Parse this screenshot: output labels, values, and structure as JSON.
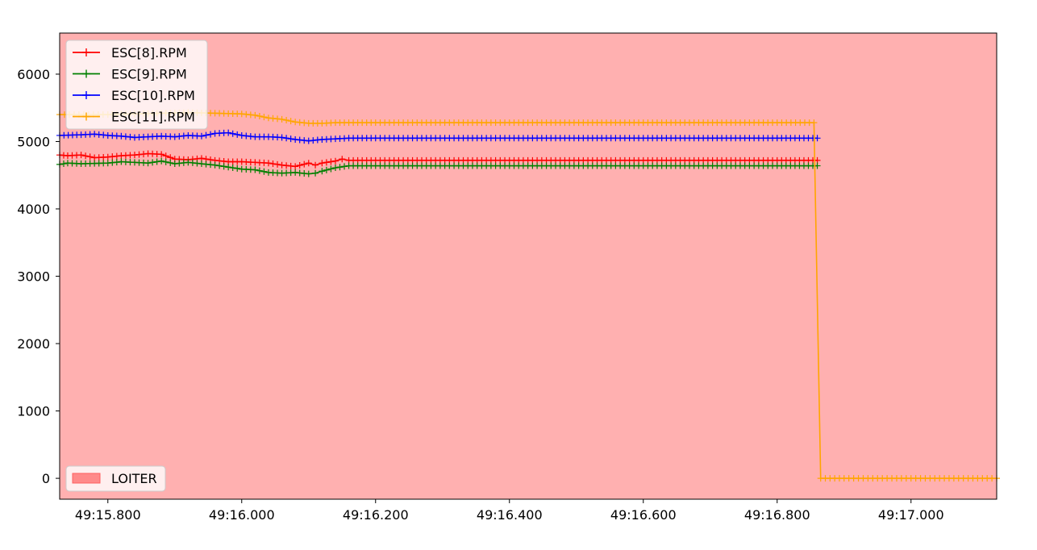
{
  "chart_data": {
    "type": "line",
    "x_unit": "seconds past 49:15",
    "xlim": [
      15.728,
      17.128
    ],
    "ylim": [
      -310,
      6610
    ],
    "x_ticks": [
      {
        "value": 15.8,
        "label": "49:15.800"
      },
      {
        "value": 16.0,
        "label": "49:16.000"
      },
      {
        "value": 16.2,
        "label": "49:16.200"
      },
      {
        "value": 16.4,
        "label": "49:16.400"
      },
      {
        "value": 16.6,
        "label": "49:16.600"
      },
      {
        "value": 16.8,
        "label": "49:16.800"
      },
      {
        "value": 17.0,
        "label": "49:17.000"
      }
    ],
    "y_ticks": [
      {
        "value": 0,
        "label": "0"
      },
      {
        "value": 1000,
        "label": "1000"
      },
      {
        "value": 2000,
        "label": "2000"
      },
      {
        "value": 3000,
        "label": "3000"
      },
      {
        "value": 4000,
        "label": "4000"
      },
      {
        "value": 5000,
        "label": "5000"
      },
      {
        "value": 6000,
        "label": "6000"
      }
    ],
    "background_mode": {
      "name": "LOITER",
      "color": "#ffb0b0",
      "legend_swatch": "#ff8a8a",
      "x_start": 15.728,
      "x_end": 17.128
    },
    "legend_placement": "upper-left",
    "mode_legend_placement": "lower-left",
    "grid": false,
    "marker": "plus",
    "series": [
      {
        "name": "ESC[8].RPM",
        "color": "#ff0000",
        "points": [
          [
            15.728,
            4800
          ],
          [
            15.74,
            4790
          ],
          [
            15.76,
            4800
          ],
          [
            15.78,
            4760
          ],
          [
            15.8,
            4770
          ],
          [
            15.82,
            4790
          ],
          [
            15.84,
            4800
          ],
          [
            15.86,
            4820
          ],
          [
            15.88,
            4810
          ],
          [
            15.9,
            4740
          ],
          [
            15.92,
            4730
          ],
          [
            15.94,
            4750
          ],
          [
            15.96,
            4720
          ],
          [
            15.98,
            4700
          ],
          [
            16.0,
            4700
          ],
          [
            16.02,
            4690
          ],
          [
            16.04,
            4680
          ],
          [
            16.06,
            4650
          ],
          [
            16.08,
            4630
          ],
          [
            16.1,
            4680
          ],
          [
            16.11,
            4650
          ],
          [
            16.12,
            4680
          ],
          [
            16.14,
            4710
          ],
          [
            16.15,
            4740
          ],
          [
            16.16,
            4720
          ],
          [
            16.2,
            4720
          ],
          [
            16.4,
            4720
          ],
          [
            16.6,
            4720
          ],
          [
            16.8,
            4720
          ],
          [
            16.86,
            4720
          ]
        ]
      },
      {
        "name": "ESC[9].RPM",
        "color": "#008000",
        "points": [
          [
            15.728,
            4660
          ],
          [
            15.74,
            4680
          ],
          [
            15.76,
            4670
          ],
          [
            15.8,
            4680
          ],
          [
            15.82,
            4700
          ],
          [
            15.84,
            4690
          ],
          [
            15.86,
            4680
          ],
          [
            15.88,
            4710
          ],
          [
            15.9,
            4670
          ],
          [
            15.92,
            4690
          ],
          [
            15.94,
            4670
          ],
          [
            15.96,
            4650
          ],
          [
            15.98,
            4620
          ],
          [
            16.0,
            4590
          ],
          [
            16.02,
            4580
          ],
          [
            16.04,
            4540
          ],
          [
            16.06,
            4530
          ],
          [
            16.08,
            4540
          ],
          [
            16.1,
            4520
          ],
          [
            16.11,
            4530
          ],
          [
            16.12,
            4560
          ],
          [
            16.14,
            4610
          ],
          [
            16.16,
            4640
          ],
          [
            16.2,
            4640
          ],
          [
            16.4,
            4640
          ],
          [
            16.6,
            4640
          ],
          [
            16.8,
            4640
          ],
          [
            16.86,
            4640
          ]
        ]
      },
      {
        "name": "ESC[10].RPM",
        "color": "#0000ff",
        "points": [
          [
            15.728,
            5090
          ],
          [
            15.76,
            5100
          ],
          [
            15.78,
            5110
          ],
          [
            15.8,
            5090
          ],
          [
            15.82,
            5080
          ],
          [
            15.84,
            5060
          ],
          [
            15.86,
            5070
          ],
          [
            15.88,
            5080
          ],
          [
            15.9,
            5070
          ],
          [
            15.92,
            5090
          ],
          [
            15.94,
            5080
          ],
          [
            15.96,
            5120
          ],
          [
            15.98,
            5130
          ],
          [
            16.0,
            5090
          ],
          [
            16.02,
            5070
          ],
          [
            16.04,
            5070
          ],
          [
            16.06,
            5060
          ],
          [
            16.08,
            5030
          ],
          [
            16.1,
            5010
          ],
          [
            16.12,
            5030
          ],
          [
            16.14,
            5040
          ],
          [
            16.16,
            5050
          ],
          [
            16.2,
            5050
          ],
          [
            16.4,
            5050
          ],
          [
            16.6,
            5050
          ],
          [
            16.8,
            5050
          ],
          [
            16.86,
            5050
          ]
        ]
      },
      {
        "name": "ESC[11].RPM",
        "color": "#ffa500",
        "points": [
          [
            15.728,
            5400
          ],
          [
            15.8,
            5400
          ],
          [
            15.84,
            5410
          ],
          [
            15.88,
            5420
          ],
          [
            15.92,
            5430
          ],
          [
            15.96,
            5420
          ],
          [
            16.0,
            5410
          ],
          [
            16.02,
            5390
          ],
          [
            16.04,
            5350
          ],
          [
            16.06,
            5330
          ],
          [
            16.08,
            5290
          ],
          [
            16.1,
            5270
          ],
          [
            16.12,
            5270
          ],
          [
            16.14,
            5280
          ],
          [
            16.2,
            5280
          ],
          [
            16.4,
            5280
          ],
          [
            16.6,
            5280
          ],
          [
            16.8,
            5280
          ],
          [
            16.855,
            5280
          ],
          [
            16.865,
            0
          ],
          [
            16.9,
            0
          ],
          [
            17.0,
            0
          ],
          [
            17.128,
            0
          ]
        ]
      }
    ]
  }
}
